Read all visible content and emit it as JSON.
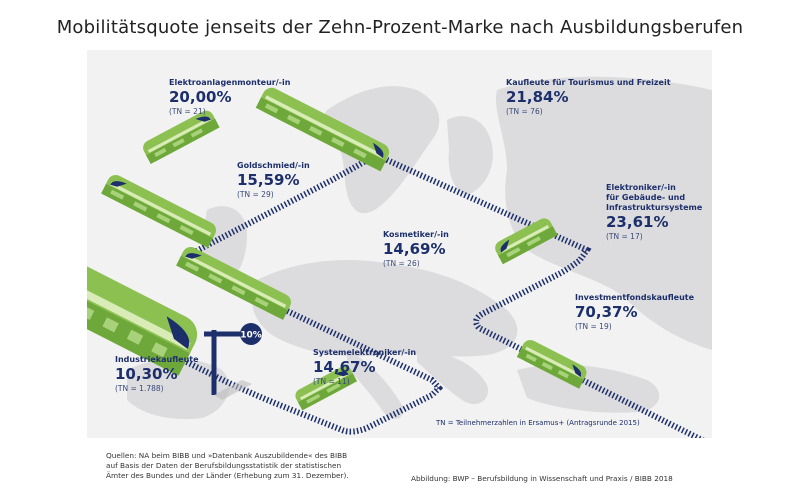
{
  "title": "Mobilitätsquote jenseits der Zehn-Prozent-Marke nach Ausbildungsberufen",
  "colors": {
    "navy": "#1d2f6b",
    "train_green": "#8cc152",
    "train_light": "#d9ecb8",
    "train_dark": "#6fa83a",
    "map_land": "#dcdcde",
    "panel_bg": "#f2f2f3"
  },
  "chart_data": {
    "type": "table",
    "title": "Mobilitätsquote jenseits der Zehn-Prozent-Marke nach Ausbildungsberufen",
    "threshold_marker": "10%",
    "unit": "%",
    "rows": [
      {
        "occupation": "Elektroanlagenmonteur/-in",
        "value": 20.0,
        "value_label": "20,00%",
        "tn": 21,
        "tn_label": "(TN = 21)"
      },
      {
        "occupation": "Kaufleute für Tourismus und Freizeit",
        "value": 21.84,
        "value_label": "21,84%",
        "tn": 76,
        "tn_label": "(TN = 76)"
      },
      {
        "occupation": "Goldschmied/-in",
        "value": 15.59,
        "value_label": "15,59%",
        "tn": 29,
        "tn_label": "(TN = 29)"
      },
      {
        "occupation": "Elektroniker/-in für Gebäude- und Infrastruktursysteme",
        "value": 23.61,
        "value_label": "23,61%",
        "tn": 17,
        "tn_label": "(TN = 17)"
      },
      {
        "occupation": "Kosmetiker/-in",
        "value": 14.69,
        "value_label": "14,69%",
        "tn": 26,
        "tn_label": "(TN = 26)"
      },
      {
        "occupation": "Investmentfondskaufleute",
        "value": 70.37,
        "value_label": "70,37%",
        "tn": 19,
        "tn_label": "(TN = 19)"
      },
      {
        "occupation": "Industriekaufleute",
        "value": 10.3,
        "value_label": "10,30%",
        "tn": 1788,
        "tn_label": "(TN = 1.788)"
      },
      {
        "occupation": "Systemelektroniker/-in",
        "value": 14.67,
        "value_label": "14,67%",
        "tn": 11,
        "tn_label": "(TN = 11)"
      }
    ]
  },
  "labels": {
    "elektroanlagen": {
      "name": "Elektroanlagenmonteur/-in",
      "pct": "20,00%",
      "tn": "(TN = 21)"
    },
    "tourismus": {
      "name": "Kaufleute für Tourismus und Freizeit",
      "pct": "21,84%",
      "tn": "(TN = 76)"
    },
    "goldschmied": {
      "name": "Goldschmied/-in",
      "pct": "15,59%",
      "tn": "(TN = 29)"
    },
    "elektroniker": {
      "name1": "Elektroniker/-in",
      "name2": "für Gebäude- und",
      "name3": "Infrastruktursysteme",
      "pct": "23,61%",
      "tn": "(TN = 17)"
    },
    "kosmetiker": {
      "name": "Kosmetiker/-in",
      "pct": "14,69%",
      "tn": "(TN = 26)"
    },
    "investment": {
      "name": "Investmentfondskaufleute",
      "pct": "70,37%",
      "tn": "(TN = 19)"
    },
    "industrie": {
      "name": "Industriekaufleute",
      "pct": "10,30%",
      "tn": "(TN = 1.788)"
    },
    "system": {
      "name": "Systemelektroniker/-in",
      "pct": "14,67%",
      "tn": "(TN = 11)"
    }
  },
  "signpost": "10%",
  "note": "TN = Teilnehmerzahlen in Ersamus+ (Antragsrunde 2015)",
  "source": {
    "line1": "Quellen: NA beim BIBB und »Datenbank Auszubildende« des BIBB",
    "line2": "auf Basis der Daten der Berufsbildungsstatistik der statistischen",
    "line3": "Ämter des Bundes und der Länder (Erhebung zum 31. Dezember)."
  },
  "credit": "Abbildung: BWP – Berufsbildung in Wissenschaft und Praxis / BIBB 2018"
}
